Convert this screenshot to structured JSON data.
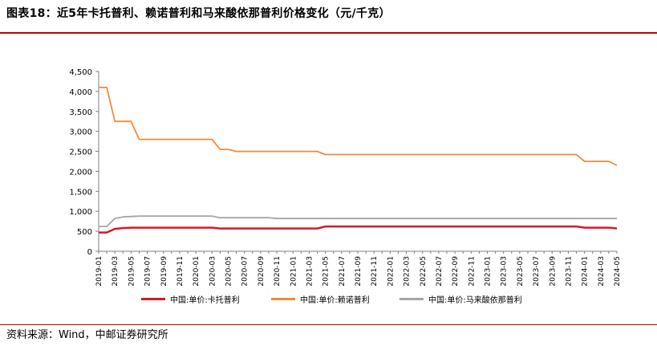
{
  "title": "图表18：近5年卡托普利、赖诺普利和马来酸依那普利价格变化（元/千克）",
  "source": "资料来源：Wind，中邮证券研究所",
  "colors": {
    "accent": "#c00000",
    "captopril": "#d7182a",
    "lisinopril": "#f28a3c",
    "enalapril": "#a6a6a6"
  },
  "chart_data": {
    "type": "line",
    "title": "",
    "xlabel": "",
    "ylabel": "",
    "ylim": [
      0,
      4500
    ],
    "yticks": [
      0,
      500,
      1000,
      1500,
      2000,
      2500,
      3000,
      3500,
      4000,
      4500
    ],
    "ytick_labels": [
      "0",
      "500",
      "1,000",
      "1,500",
      "2,000",
      "2,500",
      "3,000",
      "3,500",
      "4,000",
      "4,500"
    ],
    "xtick_labels": [
      "2019-01",
      "2019-03",
      "2019-05",
      "2019-07",
      "2019-09",
      "2019-11",
      "2020-01",
      "2020-03",
      "2020-05",
      "2020-07",
      "2020-09",
      "2020-11",
      "2021-01",
      "2021-03",
      "2021-05",
      "2021-07",
      "2021-09",
      "2021-11",
      "2022-01",
      "2022-03",
      "2022-05",
      "2022-07",
      "2022-09",
      "2022-11",
      "2023-01",
      "2023-03",
      "2023-05",
      "2023-07",
      "2023-09",
      "2023-11",
      "2024-01",
      "2024-03",
      "2024-05"
    ],
    "grid": false,
    "legend_position": "bottom",
    "series": [
      {
        "name": "中国:单价:卡托普利",
        "color": "#d7182a",
        "points": [
          [
            "2019-01",
            470
          ],
          [
            "2019-02",
            470
          ],
          [
            "2019-03",
            560
          ],
          [
            "2019-04",
            580
          ],
          [
            "2019-05",
            590
          ],
          [
            "2019-06",
            590
          ],
          [
            "2020-03",
            590
          ],
          [
            "2020-04",
            570
          ],
          [
            "2020-05",
            570
          ],
          [
            "2021-03",
            570
          ],
          [
            "2021-04",
            570
          ],
          [
            "2021-05",
            620
          ],
          [
            "2023-11",
            620
          ],
          [
            "2023-12",
            620
          ],
          [
            "2024-01",
            590
          ],
          [
            "2024-04",
            590
          ],
          [
            "2024-05",
            570
          ]
        ]
      },
      {
        "name": "中国:单价:赖诺普利",
        "color": "#f28a3c",
        "points": [
          [
            "2019-01",
            4100
          ],
          [
            "2019-02",
            4100
          ],
          [
            "2019-03",
            3250
          ],
          [
            "2019-04",
            3250
          ],
          [
            "2019-05",
            3250
          ],
          [
            "2019-06",
            2800
          ],
          [
            "2020-03",
            2800
          ],
          [
            "2020-04",
            2550
          ],
          [
            "2020-05",
            2550
          ],
          [
            "2020-06",
            2500
          ],
          [
            "2021-03",
            2500
          ],
          [
            "2021-04",
            2500
          ],
          [
            "2021-05",
            2420
          ],
          [
            "2023-12",
            2420
          ],
          [
            "2024-01",
            2250
          ],
          [
            "2024-04",
            2250
          ],
          [
            "2024-05",
            2150
          ]
        ]
      },
      {
        "name": "中国:单价:马来酸依那普利",
        "color": "#a6a6a6",
        "points": [
          [
            "2019-01",
            620
          ],
          [
            "2019-02",
            620
          ],
          [
            "2019-03",
            820
          ],
          [
            "2019-04",
            860
          ],
          [
            "2019-05",
            870
          ],
          [
            "2019-06",
            880
          ],
          [
            "2020-03",
            880
          ],
          [
            "2020-04",
            840
          ],
          [
            "2020-10",
            840
          ],
          [
            "2020-11",
            820
          ],
          [
            "2024-05",
            820
          ]
        ]
      }
    ]
  }
}
